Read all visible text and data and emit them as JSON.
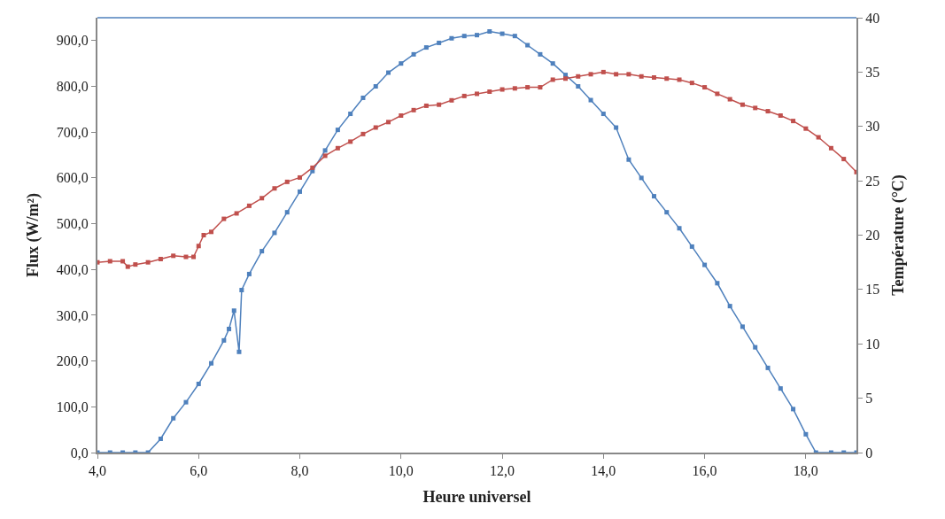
{
  "chart_data": {
    "type": "line",
    "xlabel": "Heure universel",
    "ylabel": "Flux (W/m²)",
    "y2label": "Température (°C)",
    "marker": "square",
    "line_style": "solid",
    "xlim": [
      4,
      19
    ],
    "xticks": [
      {
        "value": 4,
        "label": "4,0"
      },
      {
        "value": 6,
        "label": "6,0"
      },
      {
        "value": 8,
        "label": "8,0"
      },
      {
        "value": 10,
        "label": "10,0"
      },
      {
        "value": 12,
        "label": "12,0"
      },
      {
        "value": 14,
        "label": "14,0"
      },
      {
        "value": 16,
        "label": "16,0"
      },
      {
        "value": 18,
        "label": "18,0"
      }
    ],
    "ylim": [
      0,
      950
    ],
    "yticks": [
      {
        "value": 0,
        "label": "0,0"
      },
      {
        "value": 100,
        "label": "100,0"
      },
      {
        "value": 200,
        "label": "200,0"
      },
      {
        "value": 300,
        "label": "300,0"
      },
      {
        "value": 400,
        "label": "400,0"
      },
      {
        "value": 500,
        "label": "500,0"
      },
      {
        "value": 600,
        "label": "600,0"
      },
      {
        "value": 700,
        "label": "700,0"
      },
      {
        "value": 800,
        "label": "800,0"
      },
      {
        "value": 900,
        "label": "900,0"
      }
    ],
    "y2lim": [
      0,
      40
    ],
    "y2ticks": [
      0,
      5,
      10,
      15,
      20,
      25,
      30,
      35,
      40
    ],
    "series": [
      {
        "color": "#4f81bd",
        "x": [
          4.0,
          4.25,
          4.5,
          4.75,
          5.0,
          5.25,
          5.5,
          5.75,
          6.0,
          6.25,
          6.5,
          6.6,
          6.7,
          6.8,
          6.85,
          7.0,
          7.25,
          7.5,
          7.75,
          8.0,
          8.25,
          8.5,
          8.75,
          9.0,
          9.25,
          9.5,
          9.75,
          10.0,
          10.25,
          10.5,
          10.75,
          11.0,
          11.25,
          11.5,
          11.75,
          12.0,
          12.25,
          12.5,
          12.75,
          13.0,
          13.25,
          13.5,
          13.75,
          14.0,
          14.25,
          14.5,
          14.75,
          15.0,
          15.25,
          15.5,
          15.75,
          16.0,
          16.25,
          16.5,
          16.75,
          17.0,
          17.25,
          17.5,
          17.75,
          18.0,
          18.2,
          18.5,
          18.75,
          19.0
        ],
        "values": [
          0,
          0,
          0,
          0,
          0,
          30,
          75,
          110,
          150,
          195,
          245,
          270,
          310,
          220,
          355,
          390,
          440,
          480,
          525,
          570,
          615,
          660,
          705,
          740,
          775,
          800,
          830,
          850,
          870,
          885,
          895,
          905,
          910,
          912,
          920,
          915,
          910,
          890,
          870,
          850,
          825,
          800,
          770,
          740,
          710,
          640,
          600,
          560,
          525,
          490,
          450,
          410,
          370,
          320,
          275,
          230,
          185,
          140,
          95,
          40,
          0,
          0,
          0,
          0
        ]
      },
      {
        "color": "#c0504d",
        "axis": "y2",
        "x": [
          4.0,
          4.25,
          4.5,
          4.6,
          4.75,
          5.0,
          5.25,
          5.5,
          5.75,
          5.9,
          6.0,
          6.1,
          6.25,
          6.5,
          6.75,
          7.0,
          7.25,
          7.5,
          7.75,
          8.0,
          8.25,
          8.5,
          8.75,
          9.0,
          9.25,
          9.5,
          9.75,
          10.0,
          10.25,
          10.5,
          10.75,
          11.0,
          11.25,
          11.5,
          11.75,
          12.0,
          12.25,
          12.5,
          12.75,
          13.0,
          13.25,
          13.5,
          13.75,
          14.0,
          14.25,
          14.5,
          14.75,
          15.0,
          15.25,
          15.5,
          15.75,
          16.0,
          16.25,
          16.5,
          16.75,
          17.0,
          17.25,
          17.5,
          17.75,
          18.0,
          18.25,
          18.5,
          18.75,
          19.0
        ],
        "values": [
          17.5,
          17.6,
          17.6,
          17.1,
          17.3,
          17.5,
          17.8,
          18.1,
          18.0,
          18.0,
          19.0,
          20.0,
          20.3,
          21.5,
          22.0,
          22.7,
          23.4,
          24.3,
          24.9,
          25.3,
          26.2,
          27.3,
          28.0,
          28.6,
          29.3,
          29.9,
          30.4,
          31.0,
          31.5,
          31.9,
          32.0,
          32.4,
          32.8,
          33.0,
          33.2,
          33.4,
          33.5,
          33.6,
          33.6,
          34.3,
          34.4,
          34.6,
          34.8,
          35.0,
          34.8,
          34.8,
          34.6,
          34.5,
          34.4,
          34.3,
          34.0,
          33.6,
          33.0,
          32.5,
          32.0,
          31.7,
          31.4,
          31.0,
          30.5,
          29.8,
          29.0,
          28.0,
          27.0,
          25.8
        ]
      }
    ]
  }
}
